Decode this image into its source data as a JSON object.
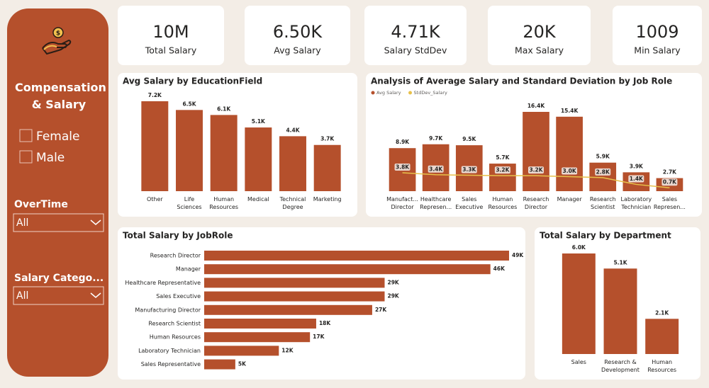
{
  "sidebar": {
    "title": "Compensation & Salary",
    "gender_options": [
      "Female",
      "Male"
    ],
    "filters": [
      {
        "label": "OverTime",
        "selected": "All"
      },
      {
        "label": "Salary Catego...",
        "selected": "All"
      }
    ]
  },
  "kpis": [
    {
      "value": "10M",
      "label": "Total Salary"
    },
    {
      "value": "6.50K",
      "label": "Avg Salary"
    },
    {
      "value": "4.71K",
      "label": "Salary StdDev"
    },
    {
      "value": "20K",
      "label": "Max Salary"
    },
    {
      "value": "1009",
      "label": "Min Salary"
    }
  ],
  "chart_data": [
    {
      "type": "bar",
      "title": "Avg Salary by EducationField",
      "color": "#b5502c",
      "categories": [
        "Other",
        "Life Sciences",
        "Human Resources",
        "Medical",
        "Technical Degree",
        "Marketing"
      ],
      "values": [
        7200,
        6500,
        6100,
        5100,
        4400,
        3700
      ],
      "value_labels": [
        "7.2K",
        "6.5K",
        "6.1K",
        "5.1K",
        "4.4K",
        "3.7K"
      ]
    },
    {
      "type": "combo",
      "title": "Analysis of Average Salary and Standard Deviation by Job Role",
      "legend": "top-left",
      "categories": [
        "Manufact... Director",
        "Healthcare Represen...",
        "Sales Executive",
        "Human Resources",
        "Research Director",
        "Manager",
        "Research Scientist",
        "Laboratory Technician",
        "Sales Represen..."
      ],
      "series": [
        {
          "name": "Avg Salary",
          "color": "#b5502c",
          "type": "bar",
          "values": [
            8900,
            9700,
            9500,
            5700,
            16400,
            15400,
            5900,
            3900,
            2700
          ],
          "value_labels": [
            "8.9K",
            "9.7K",
            "9.5K",
            "5.7K",
            "16.4K",
            "15.4K",
            "5.9K",
            "3.9K",
            "2.7K"
          ]
        },
        {
          "name": "StdDev_Salary",
          "color": "#e8c14a",
          "type": "line",
          "values": [
            3800,
            3400,
            3300,
            3200,
            3200,
            3000,
            2800,
            1400,
            700
          ],
          "value_labels": [
            "3.8K",
            "3.4K",
            "3.3K",
            "3.2K",
            "3.2K",
            "3.0K",
            "2.8K",
            "1.4K",
            "0.7K"
          ]
        }
      ]
    },
    {
      "type": "hbar",
      "title": "Total Salary by JobRole",
      "color": "#b5502c",
      "categories": [
        "Research Director",
        "Manager",
        "Healthcare Representative",
        "Sales Executive",
        "Manufacturing Director",
        "Research Scientist",
        "Human Resources",
        "Laboratory Technician",
        "Sales Representative"
      ],
      "values": [
        49000,
        46000,
        29000,
        29000,
        27000,
        18000,
        17000,
        12000,
        5000
      ],
      "value_labels": [
        "49K",
        "46K",
        "29K",
        "29K",
        "27K",
        "18K",
        "17K",
        "12K",
        "5K"
      ]
    },
    {
      "type": "bar",
      "title": "Total Salary by Department",
      "color": "#b5502c",
      "categories": [
        "Sales",
        "Research & Development",
        "Human Resources"
      ],
      "values": [
        6000,
        5100,
        2100
      ],
      "value_labels": [
        "6.0K",
        "5.1K",
        "2.1K"
      ]
    }
  ]
}
